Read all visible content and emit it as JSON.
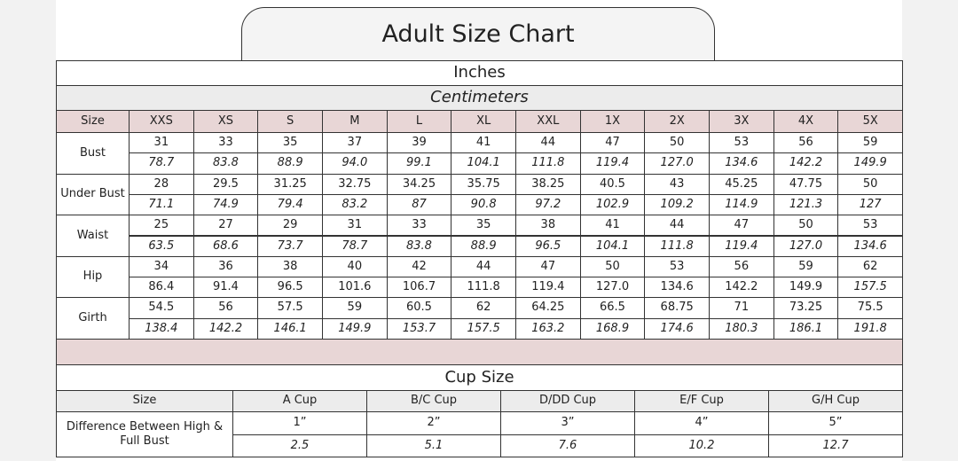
{
  "title": "Adult Size Chart",
  "unit_primary": "Inches",
  "unit_secondary": "Centimeters",
  "size_table": {
    "header": [
      "Size",
      "XXS",
      "XS",
      "S",
      "M",
      "L",
      "XL",
      "XXL",
      "1X",
      "2X",
      "3X",
      "4X",
      "5X"
    ],
    "rows": [
      {
        "label": "Bust",
        "inches": [
          "31",
          "33",
          "35",
          "37",
          "39",
          "41",
          "44",
          "47",
          "50",
          "53",
          "56",
          "59"
        ],
        "cm": [
          "78.7",
          "83.8",
          "88.9",
          "94.0",
          "99.1",
          "104.1",
          "111.8",
          "119.4",
          "127.0",
          "134.6",
          "142.2",
          "149.9"
        ]
      },
      {
        "label": "Under Bust",
        "inches": [
          "28",
          "29.5",
          "31.25",
          "32.75",
          "34.25",
          "35.75",
          "38.25",
          "40.5",
          "43",
          "45.25",
          "47.75",
          "50"
        ],
        "cm": [
          "71.1",
          "74.9",
          "79.4",
          "83.2",
          "87",
          "90.8",
          "97.2",
          "102.9",
          "109.2",
          "114.9",
          "121.3",
          "127"
        ]
      },
      {
        "label": "Waist",
        "inches": [
          "25",
          "27",
          "29",
          "31",
          "33",
          "35",
          "38",
          "41",
          "44",
          "47",
          "50",
          "53"
        ],
        "cm": [
          "63.5",
          "68.6",
          "73.7",
          "78.7",
          "83.8",
          "88.9",
          "96.5",
          "104.1",
          "111.8",
          "119.4",
          "127.0",
          "134.6"
        ]
      },
      {
        "label": "Hip",
        "inches": [
          "34",
          "36",
          "38",
          "40",
          "42",
          "44",
          "47",
          "50",
          "53",
          "56",
          "59",
          "62"
        ],
        "cm": [
          "86.4",
          "91.4",
          "96.5",
          "101.6",
          "106.7",
          "111.8",
          "119.4",
          "127.0",
          "134.6",
          "142.2",
          "149.9",
          "157.5"
        ]
      },
      {
        "label": "Girth",
        "inches": [
          "54.5",
          "56",
          "57.5",
          "59",
          "60.5",
          "62",
          "64.25",
          "66.5",
          "68.75",
          "71",
          "73.25",
          "75.5"
        ],
        "cm": [
          "138.4",
          "142.2",
          "146.1",
          "149.9",
          "153.7",
          "157.5",
          "163.2",
          "168.9",
          "174.6",
          "180.3",
          "186.1",
          "191.8"
        ]
      }
    ]
  },
  "cup_table": {
    "title": "Cup Size",
    "header": [
      "Size",
      "A Cup",
      "B/C  Cup",
      "D/DD Cup",
      "E/F Cup",
      "G/H Cup"
    ],
    "label": "Difference Between High & Full Bust",
    "inches": [
      "1”",
      "2”",
      "3”",
      "4”",
      "5”"
    ],
    "cm": [
      "2.5",
      "5.1",
      "7.6",
      "10.2",
      "12.7"
    ]
  }
}
